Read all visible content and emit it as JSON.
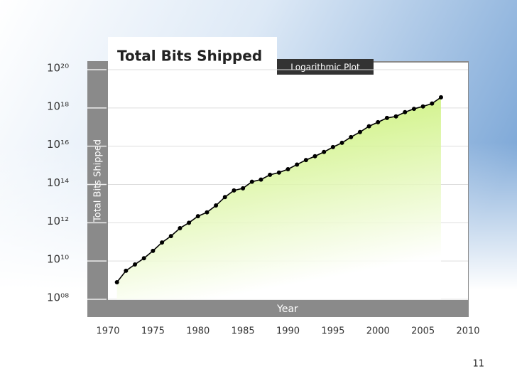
{
  "chart_data": {
    "type": "line",
    "title": "Total Bits Shipped",
    "subtitle": "Logarithmic Plot",
    "y_label": "Total Bits Shipped",
    "x_label": "Year",
    "page_number": "11",
    "x": [
      1971,
      1972,
      1973,
      1974,
      1975,
      1976,
      1977,
      1978,
      1979,
      1980,
      1981,
      1982,
      1983,
      1984,
      1985,
      1986,
      1987,
      1988,
      1989,
      1990,
      1991,
      1992,
      1993,
      1994,
      1995,
      1996,
      1997,
      1998,
      1999,
      2000,
      2001,
      2002,
      2003,
      2004,
      2005,
      2006,
      2007
    ],
    "values": [
      780000000.0,
      3100000000.0,
      6600000000.0,
      14000000000.0,
      34000000000.0,
      93000000000.0,
      200000000000.0,
      520000000000.0,
      1000000000000.0,
      2200000000000.0,
      3500000000000.0,
      8000000000000.0,
      22000000000000.0,
      49000000000000.0,
      63000000000000.0,
      140000000000000.0,
      180000000000000.0,
      320000000000000.0,
      420000000000000.0,
      630000000000000.0,
      1100000000000000.0,
      1900000000000000.0,
      3000000000000000.0,
      5000000000000000.0,
      9000000000000000.0,
      1.5e+16,
      3e+16,
      5.5e+16,
      1.1e+17,
      1.8e+17,
      3e+17,
      3.6e+17,
      6e+17,
      9e+17,
      1.2e+18,
      1.7e+18,
      3.6e+18
    ],
    "color": "#000000",
    "area_color": "#c8f06a",
    "xlim": [
      1970,
      2010
    ],
    "xticks": [
      1970,
      1975,
      1980,
      1985,
      1990,
      1995,
      2000,
      2005,
      2010
    ],
    "ylim": [
      100000000.0,
      1e+20
    ],
    "yticks": [
      {
        "value": 100000000.0,
        "label": "10⁰⁸"
      },
      {
        "value": 10000000000.0,
        "label": "10¹⁰"
      },
      {
        "value": 1000000000000.0,
        "label": "10¹²"
      },
      {
        "value": 100000000000000.0,
        "label": "10¹⁴"
      },
      {
        "value": 1e+16,
        "label": "10¹⁶"
      },
      {
        "value": 1e+18,
        "label": "10¹⁸"
      },
      {
        "value": 1e+20,
        "label": "10²⁰"
      }
    ],
    "log_scale": true,
    "grid": true
  }
}
